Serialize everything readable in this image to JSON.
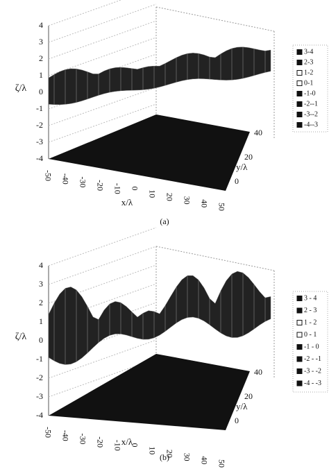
{
  "panels": [
    {
      "label": "(a)",
      "z_axis_label": "ζ/λ",
      "z_ticks": [
        "4",
        "3",
        "2",
        "1",
        "0",
        "-1",
        "-2",
        "-3",
        "-4"
      ],
      "x_axis_label": "x/λ",
      "x_ticks": [
        "-50",
        "-40",
        "-30",
        "-20",
        "-10",
        "0",
        "10",
        "20",
        "30",
        "40",
        "50"
      ],
      "y_axis_label": "y/λ",
      "y_ticks": [
        "0",
        "20",
        "40"
      ],
      "legend": [
        "3-4",
        "2-3",
        "1-2",
        "0-1",
        "-1-0",
        "-2--1",
        "-3--2",
        "-4--3"
      ]
    },
    {
      "label": "(b)",
      "z_axis_label": "ζ/λ",
      "z_ticks": [
        "4",
        "3",
        "2",
        "1",
        "0",
        "-1",
        "-2",
        "-3",
        "-4"
      ],
      "x_axis_label": "x/λ",
      "x_ticks": [
        "-50",
        "-40",
        "-30",
        "-20",
        "-10",
        "0",
        "10",
        "20",
        "30",
        "40",
        "50"
      ],
      "y_axis_label": "y/λ",
      "y_ticks": [
        "0",
        "20",
        "40"
      ],
      "legend": [
        "3 - 4",
        "2 - 3",
        "1 - 2",
        "0 - 1",
        "-1 - 0",
        "-2 - -1",
        "-3 - -2",
        "-4 - -3"
      ]
    }
  ]
}
